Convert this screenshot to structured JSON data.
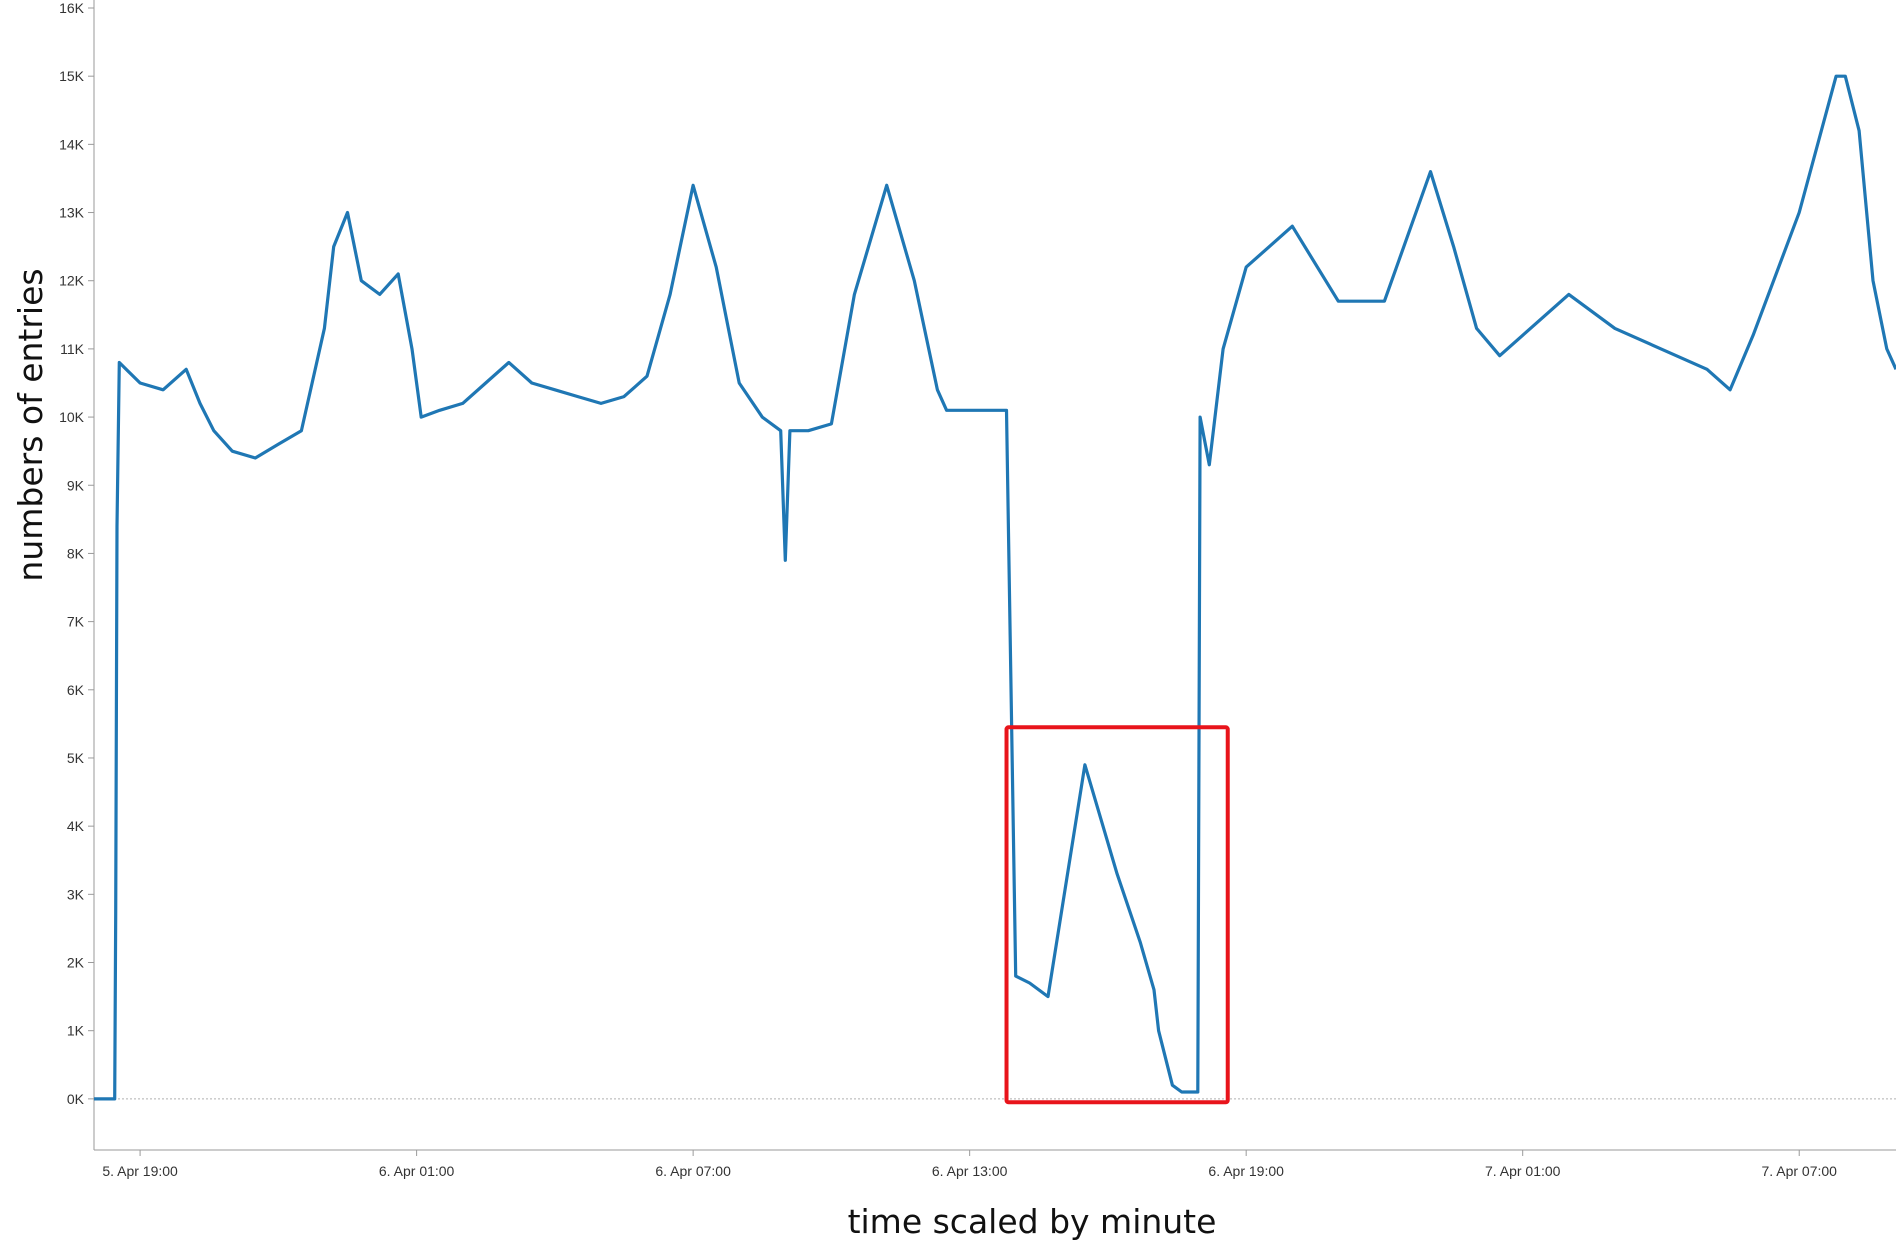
{
  "chart_data": {
    "type": "line",
    "title": "",
    "xlabel": "time scaled by minute",
    "ylabel": "numbers of entries",
    "x_tick_labels": [
      "5. Apr 19:00",
      "6. Apr 01:00",
      "6. Apr 07:00",
      "6. Apr 13:00",
      "6. Apr 19:00",
      "7. Apr 01:00",
      "7. Apr 07:00"
    ],
    "x_tick_hours": [
      0,
      6,
      12,
      18,
      24,
      30,
      36
    ],
    "y_tick_labels": [
      "0K",
      "1K",
      "2K",
      "3K",
      "4K",
      "5K",
      "6K",
      "7K",
      "8K",
      "9K",
      "10K",
      "11K",
      "12K",
      "13K",
      "14K",
      "15K",
      "16K"
    ],
    "xlim_hours": [
      -1.0,
      38.1
    ],
    "ylim": [
      -750,
      16000
    ],
    "grid": false,
    "series_color": "#1f77b4",
    "highlight_color": "#e8141b",
    "series": [
      {
        "points_hours_since_5apr1900": [
          [
            -1.0,
            0
          ],
          [
            -0.6,
            0
          ],
          [
            -0.55,
            0
          ],
          [
            -0.53,
            2700
          ],
          [
            -0.5,
            8400
          ],
          [
            -0.45,
            10800
          ],
          [
            0.0,
            10500
          ],
          [
            0.5,
            10400
          ],
          [
            1.0,
            10700
          ],
          [
            1.3,
            10200
          ],
          [
            1.6,
            9800
          ],
          [
            2.0,
            9500
          ],
          [
            2.5,
            9400
          ],
          [
            3.0,
            9600
          ],
          [
            3.5,
            9800
          ],
          [
            4.0,
            11300
          ],
          [
            4.2,
            12500
          ],
          [
            4.5,
            13000
          ],
          [
            4.8,
            12000
          ],
          [
            5.2,
            11800
          ],
          [
            5.6,
            12100
          ],
          [
            5.9,
            11000
          ],
          [
            6.1,
            10000
          ],
          [
            6.5,
            10100
          ],
          [
            7.0,
            10200
          ],
          [
            7.5,
            10500
          ],
          [
            8.0,
            10800
          ],
          [
            8.5,
            10500
          ],
          [
            9.0,
            10400
          ],
          [
            9.5,
            10300
          ],
          [
            10.0,
            10200
          ],
          [
            10.5,
            10300
          ],
          [
            11.0,
            10600
          ],
          [
            11.5,
            11800
          ],
          [
            12.0,
            13400
          ],
          [
            12.5,
            12200
          ],
          [
            13.0,
            10500
          ],
          [
            13.5,
            10000
          ],
          [
            13.9,
            9800
          ],
          [
            14.0,
            7900
          ],
          [
            14.1,
            9800
          ],
          [
            14.5,
            9800
          ],
          [
            15.0,
            9900
          ],
          [
            15.5,
            11800
          ],
          [
            16.2,
            13400
          ],
          [
            16.8,
            12000
          ],
          [
            17.3,
            10400
          ],
          [
            17.5,
            10100
          ],
          [
            18.0,
            10100
          ],
          [
            18.5,
            10100
          ],
          [
            18.8,
            10100
          ],
          [
            19.0,
            1800
          ],
          [
            19.3,
            1700
          ],
          [
            19.7,
            1500
          ],
          [
            20.5,
            4900
          ],
          [
            21.2,
            3300
          ],
          [
            21.7,
            2300
          ],
          [
            22.0,
            1600
          ],
          [
            22.1,
            1000
          ],
          [
            22.4,
            200
          ],
          [
            22.6,
            100
          ],
          [
            22.95,
            100
          ],
          [
            23.0,
            10000
          ],
          [
            23.2,
            9300
          ],
          [
            23.5,
            11000
          ],
          [
            24.0,
            12200
          ],
          [
            25.0,
            12800
          ],
          [
            26.0,
            11700
          ],
          [
            27.0,
            11700
          ],
          [
            28.0,
            13600
          ],
          [
            28.5,
            12500
          ],
          [
            29.0,
            11300
          ],
          [
            29.5,
            10900
          ],
          [
            30.0,
            11200
          ],
          [
            31.0,
            11800
          ],
          [
            32.0,
            11300
          ],
          [
            33.0,
            11000
          ],
          [
            34.0,
            10700
          ],
          [
            34.5,
            10400
          ],
          [
            35.0,
            11200
          ],
          [
            36.0,
            13000
          ],
          [
            36.8,
            15000
          ],
          [
            37.0,
            15000
          ],
          [
            37.3,
            14200
          ],
          [
            37.6,
            12000
          ],
          [
            37.9,
            11000
          ],
          [
            38.1,
            10700
          ]
        ]
      }
    ],
    "annotation_box": {
      "x_hours": [
        18.8,
        23.6
      ],
      "y": [
        -50,
        5450
      ]
    }
  }
}
